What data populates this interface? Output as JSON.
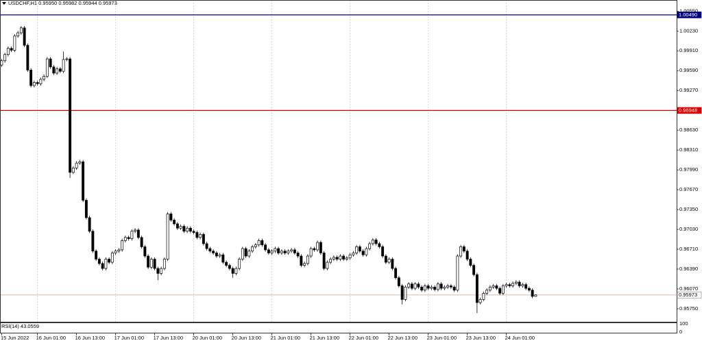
{
  "chart_data": {
    "type": "candlestick",
    "title": "USDCHF,H1  0.95950 0.95982 0.95944 0.95973",
    "categories": [
      "15 Jun 2022",
      null,
      null,
      null,
      null,
      null,
      null,
      null,
      null,
      null,
      null,
      "16 Jun 01:00",
      null,
      null,
      null,
      null,
      null,
      null,
      null,
      null,
      null,
      null,
      null,
      "16 Jun 13:00",
      null,
      null,
      null,
      null,
      null,
      null,
      null,
      null,
      null,
      null,
      null,
      "17 Jun 01:00",
      null,
      null,
      null,
      null,
      null,
      null,
      null,
      null,
      null,
      null,
      null,
      "17 Jun 13:00",
      null,
      null,
      null,
      null,
      null,
      null,
      null,
      null,
      null,
      null,
      null,
      "20 Jun 01:00",
      null,
      null,
      null,
      null,
      null,
      null,
      null,
      null,
      null,
      null,
      null,
      "20 Jun 13:00",
      null,
      null,
      null,
      null,
      null,
      null,
      null,
      null,
      null,
      null,
      null,
      "21 Jun 01:00",
      null,
      null,
      null,
      null,
      null,
      null,
      null,
      null,
      null,
      null,
      null,
      "21 Jun 13:00",
      null,
      null,
      null,
      null,
      null,
      null,
      null,
      null,
      null,
      null,
      null,
      "22 Jun 01:00",
      null,
      null,
      null,
      null,
      null,
      null,
      null,
      null,
      null,
      null,
      null,
      "22 Jun 13:00",
      null,
      null,
      null,
      null,
      null,
      null,
      null,
      null,
      null,
      null,
      null,
      "23 Jun 01:00",
      null,
      null,
      null,
      null,
      null,
      null,
      null,
      null,
      null,
      null,
      null,
      "23 Jun 13:00",
      null,
      null,
      null,
      null,
      null,
      null,
      null,
      null,
      null,
      null,
      null,
      "24 Jun 01:00",
      null,
      null,
      null,
      null,
      null,
      null,
      null,
      null,
      null
    ],
    "open": [
      0.9968,
      0.9975,
      0.9985,
      0.9995,
      0.9992,
      1.0015,
      1.002,
      1.0028,
      1.0,
      0.996,
      0.9935,
      0.994,
      0.9938,
      0.9945,
      0.995,
      0.9978,
      0.9965,
      0.9955,
      0.9962,
      0.9958,
      0.9977,
      0.9978,
      0.9795,
      0.9802,
      0.981,
      0.9812,
      0.975,
      0.9722,
      0.97,
      0.9668,
      0.9655,
      0.9648,
      0.964,
      0.9655,
      0.965,
      0.9665,
      0.9668,
      0.967,
      0.9685,
      0.969,
      0.9688,
      0.97,
      0.9702,
      0.969,
      0.9675,
      0.966,
      0.9642,
      0.9655,
      0.964,
      0.9632,
      0.964,
      0.9655,
      0.9728,
      0.9718,
      0.9712,
      0.9705,
      0.9708,
      0.97,
      0.9705,
      0.97,
      0.9698,
      0.969,
      0.9695,
      0.968,
      0.9672,
      0.9668,
      0.9665,
      0.966,
      0.9662,
      0.965,
      0.9645,
      0.964,
      0.9632,
      0.964,
      0.9655,
      0.9672,
      0.966,
      0.9668,
      0.9675,
      0.9678,
      0.9685,
      0.9678,
      0.967,
      0.9665,
      0.9668,
      0.9672,
      0.9665,
      0.9668,
      0.9665,
      0.9668,
      0.967,
      0.9665,
      0.966,
      0.9645,
      0.9648,
      0.966,
      0.9672,
      0.967,
      0.9682,
      0.9665,
      0.964,
      0.965,
      0.9655,
      0.9658,
      0.9655,
      0.966,
      0.9655,
      0.9657,
      0.9662,
      0.9665,
      0.9675,
      0.9668,
      0.9662,
      0.9672,
      0.968,
      0.9686,
      0.968,
      0.9675,
      0.966,
      0.965,
      0.9655,
      0.964,
      0.9625,
      0.9612,
      0.959,
      0.961,
      0.9615,
      0.9608,
      0.9615,
      0.961,
      0.9605,
      0.9612,
      0.9608,
      0.961,
      0.9606,
      0.9615,
      0.9608,
      0.961,
      0.9612,
      0.961,
      0.9605,
      0.966,
      0.9675,
      0.9668,
      0.9655,
      0.9645,
      0.963,
      0.9585,
      0.959,
      0.96,
      0.9605,
      0.961,
      0.9612,
      0.9608,
      0.96,
      0.9612,
      0.9614,
      0.9612,
      0.9616,
      0.9618,
      0.9612,
      0.9614,
      0.9608,
      0.9605,
      0.9595
    ],
    "high": [
      0.9978,
      0.9988,
      0.9998,
      0.9998,
      1.0018,
      1.0023,
      1.0031,
      1.0031,
      1.0003,
      0.9963,
      0.9943,
      0.9943,
      0.9948,
      0.9953,
      0.9981,
      0.9981,
      0.9968,
      0.9965,
      0.9965,
      0.999,
      0.9981,
      0.9981,
      0.9805,
      0.9813,
      0.9815,
      0.9815,
      0.9753,
      0.9725,
      0.9703,
      0.9671,
      0.9658,
      0.9651,
      0.9658,
      0.9658,
      0.9668,
      0.9671,
      0.9673,
      0.9688,
      0.9693,
      0.9693,
      0.9703,
      0.9705,
      0.9705,
      0.9693,
      0.9678,
      0.9663,
      0.9658,
      0.9658,
      0.9643,
      0.9643,
      0.9658,
      0.9731,
      0.9731,
      0.9721,
      0.9715,
      0.9711,
      0.9711,
      0.9708,
      0.9708,
      0.9703,
      0.9701,
      0.9698,
      0.9698,
      0.9683,
      0.9675,
      0.9671,
      0.9668,
      0.9665,
      0.9665,
      0.9653,
      0.9648,
      0.9643,
      0.9643,
      0.9658,
      0.9675,
      0.9675,
      0.9671,
      0.9678,
      0.9681,
      0.9688,
      0.9688,
      0.9681,
      0.9673,
      0.9671,
      0.9675,
      0.9675,
      0.9671,
      0.9671,
      0.9671,
      0.9673,
      0.9673,
      0.9668,
      0.9663,
      0.9651,
      0.9663,
      0.9675,
      0.9675,
      0.9685,
      0.9685,
      0.9668,
      0.9653,
      0.9658,
      0.9661,
      0.9661,
      0.9663,
      0.9663,
      0.966,
      0.9665,
      0.9668,
      0.9678,
      0.9678,
      0.9671,
      0.9675,
      0.9683,
      0.9689,
      0.9689,
      0.9683,
      0.9678,
      0.9663,
      0.9658,
      0.9658,
      0.9643,
      0.9628,
      0.9615,
      0.9613,
      0.9618,
      0.9618,
      0.9618,
      0.9618,
      0.9613,
      0.9615,
      0.9615,
      0.9613,
      0.9613,
      0.9618,
      0.9618,
      0.9613,
      0.9615,
      0.9615,
      0.9613,
      0.9663,
      0.9678,
      0.9678,
      0.9671,
      0.9658,
      0.9648,
      0.9633,
      0.9593,
      0.9603,
      0.9608,
      0.9613,
      0.9615,
      0.9615,
      0.9611,
      0.9615,
      0.9617,
      0.9617,
      0.9619,
      0.9621,
      0.9621,
      0.9617,
      0.9617,
      0.9611,
      0.9608,
      0.95982
    ],
    "low": [
      0.9965,
      0.9972,
      0.9982,
      0.9989,
      0.9989,
      1.0012,
      1.0017,
      0.9997,
      0.9957,
      0.9932,
      0.9932,
      0.9935,
      0.9935,
      0.9942,
      0.9947,
      0.9962,
      0.9952,
      0.9952,
      0.9955,
      0.9955,
      0.9974,
      0.9786,
      0.9792,
      0.9799,
      0.9807,
      0.9747,
      0.9719,
      0.9697,
      0.9665,
      0.9652,
      0.9645,
      0.9637,
      0.9637,
      0.9647,
      0.9647,
      0.9662,
      0.9665,
      0.9667,
      0.9682,
      0.9685,
      0.9685,
      0.9697,
      0.9687,
      0.9672,
      0.9657,
      0.9639,
      0.9639,
      0.9637,
      0.9621,
      0.9629,
      0.9637,
      0.9652,
      0.9715,
      0.9709,
      0.9702,
      0.9702,
      0.9697,
      0.9697,
      0.9697,
      0.9695,
      0.9687,
      0.9687,
      0.9677,
      0.9669,
      0.9665,
      0.9662,
      0.9657,
      0.9657,
      0.9647,
      0.9642,
      0.9637,
      0.9625,
      0.9629,
      0.9637,
      0.9652,
      0.9657,
      0.9657,
      0.9665,
      0.9672,
      0.9675,
      0.9675,
      0.9667,
      0.9662,
      0.9662,
      0.9665,
      0.9662,
      0.9662,
      0.9662,
      0.9662,
      0.9665,
      0.9662,
      0.9657,
      0.9642,
      0.9642,
      0.9645,
      0.9657,
      0.9667,
      0.9667,
      0.9662,
      0.9637,
      0.9637,
      0.9647,
      0.9652,
      0.9652,
      0.9652,
      0.9652,
      0.9652,
      0.9654,
      0.9659,
      0.9662,
      0.9665,
      0.9659,
      0.9659,
      0.9669,
      0.9677,
      0.9677,
      0.9672,
      0.9657,
      0.9647,
      0.9647,
      0.9637,
      0.9622,
      0.9609,
      0.9582,
      0.9587,
      0.9607,
      0.9605,
      0.9605,
      0.9607,
      0.9602,
      0.9602,
      0.9605,
      0.9605,
      0.9603,
      0.9603,
      0.9605,
      0.9605,
      0.9607,
      0.9607,
      0.9602,
      0.9602,
      0.9657,
      0.9665,
      0.9652,
      0.9642,
      0.9627,
      0.9568,
      0.9582,
      0.9587,
      0.9597,
      0.9602,
      0.9607,
      0.9605,
      0.9597,
      0.9597,
      0.9609,
      0.9609,
      0.9609,
      0.9613,
      0.9609,
      0.9609,
      0.9605,
      0.9602,
      0.9592,
      0.95944
    ],
    "close": [
      0.9975,
      0.9985,
      0.9995,
      0.9992,
      1.0015,
      1.002,
      1.0028,
      1.0,
      0.996,
      0.9935,
      0.994,
      0.9938,
      0.9945,
      0.995,
      0.9978,
      0.9965,
      0.9955,
      0.9962,
      0.9958,
      0.9977,
      0.9978,
      0.9795,
      0.9802,
      0.981,
      0.9812,
      0.975,
      0.9722,
      0.97,
      0.9668,
      0.9655,
      0.9648,
      0.964,
      0.9655,
      0.965,
      0.9665,
      0.9668,
      0.967,
      0.9685,
      0.969,
      0.9688,
      0.97,
      0.9702,
      0.969,
      0.9675,
      0.966,
      0.9642,
      0.9655,
      0.964,
      0.9632,
      0.964,
      0.9655,
      0.9728,
      0.9718,
      0.9712,
      0.9705,
      0.9708,
      0.97,
      0.9705,
      0.97,
      0.9698,
      0.969,
      0.9695,
      0.968,
      0.9672,
      0.9668,
      0.9665,
      0.966,
      0.9662,
      0.965,
      0.9645,
      0.964,
      0.9632,
      0.964,
      0.9655,
      0.9672,
      0.966,
      0.9668,
      0.9675,
      0.9678,
      0.9685,
      0.9678,
      0.967,
      0.9665,
      0.9668,
      0.9672,
      0.9665,
      0.9668,
      0.9665,
      0.9668,
      0.967,
      0.9665,
      0.966,
      0.9645,
      0.9648,
      0.966,
      0.9672,
      0.967,
      0.9682,
      0.9665,
      0.964,
      0.965,
      0.9655,
      0.9658,
      0.9655,
      0.966,
      0.9655,
      0.9657,
      0.9662,
      0.9665,
      0.9675,
      0.9668,
      0.9662,
      0.9672,
      0.968,
      0.9686,
      0.968,
      0.9675,
      0.966,
      0.965,
      0.9655,
      0.964,
      0.9625,
      0.9612,
      0.959,
      0.961,
      0.9615,
      0.9608,
      0.9615,
      0.961,
      0.9605,
      0.9612,
      0.9608,
      0.961,
      0.9606,
      0.9615,
      0.9608,
      0.961,
      0.9612,
      0.961,
      0.9605,
      0.966,
      0.9675,
      0.9668,
      0.9655,
      0.9645,
      0.963,
      0.9585,
      0.959,
      0.96,
      0.9605,
      0.961,
      0.9612,
      0.9608,
      0.96,
      0.9612,
      0.9614,
      0.9612,
      0.9616,
      0.9618,
      0.9612,
      0.9614,
      0.9608,
      0.9605,
      0.9595,
      0.95973
    ],
    "up_color": "#ffffff",
    "down_color": "#000000",
    "ylim": [
      0.9554,
      1.0073
    ],
    "yticks": [
      {
        "value": 1.0055,
        "label": "1.00550"
      },
      {
        "value": 1.0023,
        "label": "1.00230"
      },
      {
        "value": 0.9991,
        "label": "0.99910"
      },
      {
        "value": 0.9959,
        "label": "0.99590"
      },
      {
        "value": 0.9927,
        "label": "0.99270"
      },
      {
        "value": 0.9863,
        "label": "0.98630"
      },
      {
        "value": 0.9831,
        "label": "0.98310"
      },
      {
        "value": 0.9799,
        "label": "0.97990"
      },
      {
        "value": 0.9767,
        "label": "0.97670"
      },
      {
        "value": 0.9735,
        "label": "0.97350"
      },
      {
        "value": 0.9703,
        "label": "0.97030"
      },
      {
        "value": 0.9671,
        "label": "0.96710"
      },
      {
        "value": 0.9639,
        "label": "0.96390"
      },
      {
        "value": 0.9607,
        "label": "0.96070"
      },
      {
        "value": 0.9575,
        "label": "0.95750"
      }
    ],
    "levels": [
      {
        "value": 1.0049,
        "label": "1.00490",
        "color": "#000080"
      },
      {
        "value": 0.98948,
        "label": "0.98948",
        "color": "#e00000"
      },
      {
        "value": 0.95973,
        "label": "0.95973",
        "color": "#d8c0b8"
      }
    ],
    "grid": true,
    "indicator": {
      "label": "RSI(14) 43.0559",
      "yticks": [
        {
          "value": 100,
          "label": "100"
        },
        0
      ]
    }
  }
}
